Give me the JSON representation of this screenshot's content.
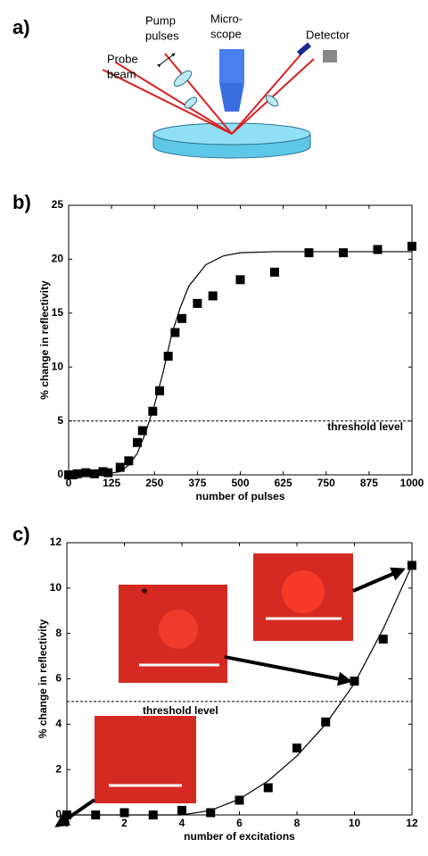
{
  "panels": {
    "a": "a)",
    "b": "b)",
    "c": "c)"
  },
  "diagram": {
    "pump": [
      "Pump",
      "pulses"
    ],
    "microscope": [
      "Micro-",
      "scope"
    ],
    "detector": "Detector",
    "probe": [
      "Probe",
      "beam"
    ]
  },
  "chart_data": [
    {
      "type": "scatter",
      "xlabel": "number of pulses",
      "ylabel": "% change in reflectivity",
      "x": [
        0,
        12,
        25,
        50,
        75,
        100,
        115,
        150,
        175,
        200,
        215,
        245,
        265,
        290,
        310,
        330,
        375,
        420,
        500,
        600,
        700,
        800,
        900,
        1000
      ],
      "values": [
        0,
        0,
        0.1,
        0.2,
        0.1,
        0.3,
        0.2,
        0.7,
        1.3,
        3,
        4.1,
        5.9,
        7.8,
        11,
        13.2,
        14.5,
        15.9,
        16.6,
        18.1,
        18.8,
        20.6,
        20.6,
        20.9,
        21.2
      ],
      "fit": {
        "x": [
          0,
          100,
          150,
          175,
          200,
          225,
          250,
          275,
          300,
          325,
          350,
          400,
          450,
          500,
          600,
          800,
          1000
        ],
        "values": [
          0,
          0.05,
          0.3,
          0.9,
          2,
          4,
          6.5,
          9.5,
          13,
          15.5,
          17.5,
          19.5,
          20.3,
          20.6,
          20.7,
          20.7,
          20.7
        ]
      },
      "threshold": 5,
      "annotation": "threshold level",
      "xlim": [
        0,
        1000
      ],
      "xticks": [
        0,
        125,
        250,
        375,
        500,
        625,
        750,
        875,
        1000
      ],
      "ylim": [
        0,
        25
      ],
      "yticks": [
        0,
        5,
        10,
        15,
        20,
        25
      ]
    },
    {
      "type": "scatter",
      "xlabel": "number of excitations",
      "ylabel": "% change in reflectivity",
      "x": [
        0,
        1,
        2,
        3,
        4,
        5,
        6,
        7,
        8,
        9,
        10,
        11,
        12
      ],
      "values": [
        0,
        0,
        0.1,
        0,
        0.2,
        0.1,
        0.65,
        1.2,
        2.95,
        4.1,
        5.9,
        7.75,
        11
      ],
      "fit": {
        "x": [
          0,
          4,
          5,
          6,
          7,
          8,
          9,
          10,
          11,
          12
        ],
        "values": [
          0,
          0,
          0.2,
          0.7,
          1.5,
          2.6,
          4.0,
          5.8,
          8.2,
          11
        ]
      },
      "threshold": 5,
      "annotation": "threshold level",
      "xlim": [
        0,
        12
      ],
      "xticks": [
        0,
        2,
        4,
        6,
        8,
        10,
        12
      ],
      "ylim": [
        0,
        12
      ],
      "yticks": [
        0,
        2,
        4,
        6,
        8,
        10,
        12
      ]
    }
  ]
}
